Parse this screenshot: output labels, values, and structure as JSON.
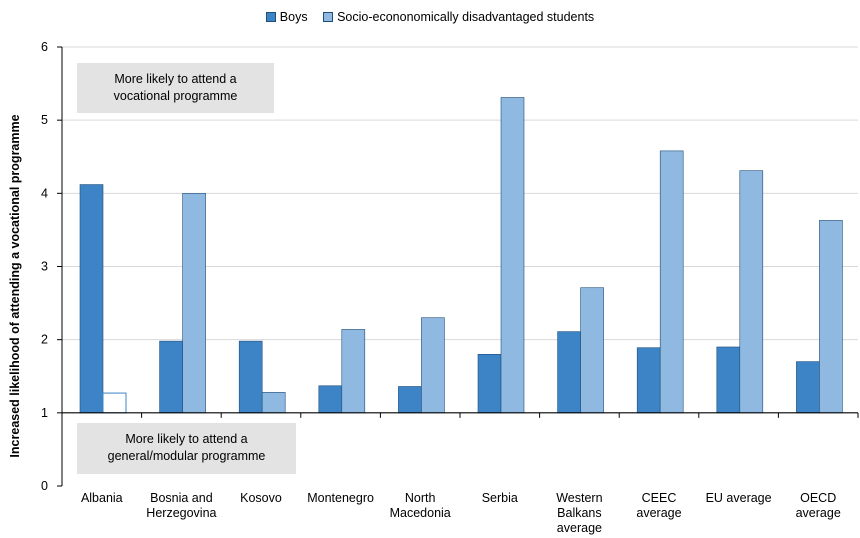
{
  "legend": {
    "boys_label": "Boys",
    "disadv_label": "Socio-econonomically disadvantaged students"
  },
  "annotations": {
    "upper": "More likely to attend a\nvocational programme",
    "lower": "More likely to attend a\ngeneral/modular programme"
  },
  "colors": {
    "boys": "#3d84c6",
    "disadvantaged": "#8fb9e0",
    "baseline": "#000000",
    "gridline": "#d9d9d9",
    "note_background": "#e3e3e3"
  },
  "chart_data": {
    "type": "bar",
    "title": "",
    "xlabel": "",
    "ylabel": "Increased likelihood of attending a vocational programme",
    "ylim": [
      0,
      6
    ],
    "yticks": [
      0,
      1,
      2,
      3,
      4,
      5,
      6
    ],
    "baseline": 1,
    "grid": true,
    "legend_position": "top-center",
    "categories": [
      "Albania",
      "Bosnia and Herzegovina",
      "Kosovo",
      "Montenegro",
      "North Macedonia",
      "Serbia",
      "Western Balkans average",
      "CEEC average",
      "EU average",
      "OECD average"
    ],
    "category_lines": [
      [
        "Albania"
      ],
      [
        "Bosnia and",
        "Herzegovina"
      ],
      [
        "Kosovo"
      ],
      [
        "Montenegro"
      ],
      [
        "North",
        "Macedonia"
      ],
      [
        "Serbia"
      ],
      [
        "Western",
        "Balkans",
        "average"
      ],
      [
        "CEEC",
        "average"
      ],
      [
        "EU average"
      ],
      [
        "OECD",
        "average"
      ]
    ],
    "series": [
      {
        "name": "Boys",
        "values": [
          4.12,
          1.98,
          1.98,
          1.37,
          1.36,
          1.8,
          2.11,
          1.89,
          1.9,
          1.7
        ]
      },
      {
        "name": "Socio-econonomically disadvantaged students",
        "values": [
          1.27,
          4.0,
          1.28,
          2.14,
          2.3,
          5.31,
          2.71,
          4.58,
          4.31,
          3.63
        ],
        "hollow_indices": [
          0
        ]
      }
    ]
  }
}
